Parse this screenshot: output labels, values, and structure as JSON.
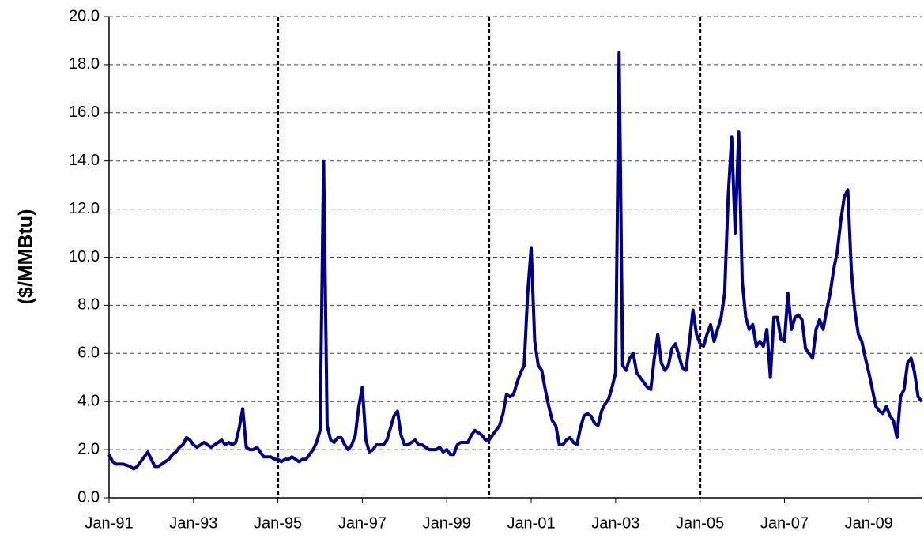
{
  "chart_data": {
    "type": "line",
    "y_label": "($/MMBtu)",
    "x": [
      "1991-01",
      "1991-02",
      "1991-03",
      "1991-04",
      "1991-05",
      "1991-06",
      "1991-07",
      "1991-08",
      "1991-09",
      "1991-10",
      "1991-11",
      "1991-12",
      "1992-01",
      "1992-02",
      "1992-03",
      "1992-04",
      "1992-05",
      "1992-06",
      "1992-07",
      "1992-08",
      "1992-09",
      "1992-10",
      "1992-11",
      "1992-12",
      "1993-01",
      "1993-02",
      "1993-03",
      "1993-04",
      "1993-05",
      "1993-06",
      "1993-07",
      "1993-08",
      "1993-09",
      "1993-10",
      "1993-11",
      "1993-12",
      "1994-01",
      "1994-02",
      "1994-03",
      "1994-04",
      "1994-05",
      "1994-06",
      "1994-07",
      "1994-08",
      "1994-09",
      "1994-10",
      "1994-11",
      "1994-12",
      "1995-01",
      "1995-02",
      "1995-03",
      "1995-04",
      "1995-05",
      "1995-06",
      "1995-07",
      "1995-08",
      "1995-09",
      "1995-10",
      "1995-11",
      "1995-12",
      "1996-01",
      "1996-02",
      "1996-03",
      "1996-04",
      "1996-05",
      "1996-06",
      "1996-07",
      "1996-08",
      "1996-09",
      "1996-10",
      "1996-11",
      "1996-12",
      "1997-01",
      "1997-02",
      "1997-03",
      "1997-04",
      "1997-05",
      "1997-06",
      "1997-07",
      "1997-08",
      "1997-09",
      "1997-10",
      "1997-11",
      "1997-12",
      "1998-01",
      "1998-02",
      "1998-03",
      "1998-04",
      "1998-05",
      "1998-06",
      "1998-07",
      "1998-08",
      "1998-09",
      "1998-10",
      "1998-11",
      "1998-12",
      "1999-01",
      "1999-02",
      "1999-03",
      "1999-04",
      "1999-05",
      "1999-06",
      "1999-07",
      "1999-08",
      "1999-09",
      "1999-10",
      "1999-11",
      "1999-12",
      "2000-01",
      "2000-02",
      "2000-03",
      "2000-04",
      "2000-05",
      "2000-06",
      "2000-07",
      "2000-08",
      "2000-09",
      "2000-10",
      "2000-11",
      "2000-12",
      "2001-01",
      "2001-02",
      "2001-03",
      "2001-04",
      "2001-05",
      "2001-06",
      "2001-07",
      "2001-08",
      "2001-09",
      "2001-10",
      "2001-11",
      "2001-12",
      "2002-01",
      "2002-02",
      "2002-03",
      "2002-04",
      "2002-05",
      "2002-06",
      "2002-07",
      "2002-08",
      "2002-09",
      "2002-10",
      "2002-11",
      "2002-12",
      "2003-01",
      "2003-02",
      "2003-03",
      "2003-04",
      "2003-05",
      "2003-06",
      "2003-07",
      "2003-08",
      "2003-09",
      "2003-10",
      "2003-11",
      "2003-12",
      "2004-01",
      "2004-02",
      "2004-03",
      "2004-04",
      "2004-05",
      "2004-06",
      "2004-07",
      "2004-08",
      "2004-09",
      "2004-10",
      "2004-11",
      "2004-12",
      "2005-01",
      "2005-02",
      "2005-03",
      "2005-04",
      "2005-05",
      "2005-06",
      "2005-07",
      "2005-08",
      "2005-09",
      "2005-10",
      "2005-11",
      "2005-12",
      "2006-01",
      "2006-02",
      "2006-03",
      "2006-04",
      "2006-05",
      "2006-06",
      "2006-07",
      "2006-08",
      "2006-09",
      "2006-10",
      "2006-11",
      "2006-12",
      "2007-01",
      "2007-02",
      "2007-03",
      "2007-04",
      "2007-05",
      "2007-06",
      "2007-07",
      "2007-08",
      "2007-09",
      "2007-10",
      "2007-11",
      "2007-12",
      "2008-01",
      "2008-02",
      "2008-03",
      "2008-04",
      "2008-05",
      "2008-06",
      "2008-07",
      "2008-08",
      "2008-09",
      "2008-10",
      "2008-11",
      "2008-12",
      "2009-01",
      "2009-02",
      "2009-03",
      "2009-04",
      "2009-05",
      "2009-06",
      "2009-07",
      "2009-08",
      "2009-09",
      "2009-10",
      "2009-11",
      "2009-12",
      "2010-01",
      "2010-02",
      "2010-03",
      "2010-04"
    ],
    "series": [
      {
        "color": "#000080",
        "values": [
          1.8,
          1.5,
          1.4,
          1.4,
          1.4,
          1.35,
          1.3,
          1.2,
          1.3,
          1.5,
          1.7,
          1.9,
          1.6,
          1.3,
          1.3,
          1.4,
          1.5,
          1.6,
          1.8,
          1.9,
          2.1,
          2.2,
          2.5,
          2.4,
          2.2,
          2.1,
          2.2,
          2.3,
          2.2,
          2.1,
          2.2,
          2.3,
          2.4,
          2.2,
          2.3,
          2.2,
          2.3,
          2.9,
          3.7,
          2.1,
          2.0,
          2.0,
          2.1,
          1.9,
          1.7,
          1.7,
          1.7,
          1.6,
          1.6,
          1.5,
          1.6,
          1.6,
          1.7,
          1.6,
          1.5,
          1.6,
          1.6,
          1.8,
          2.0,
          2.3,
          2.8,
          14.0,
          3.0,
          2.4,
          2.3,
          2.5,
          2.5,
          2.2,
          2.0,
          2.2,
          2.6,
          3.8,
          4.6,
          2.4,
          1.9,
          2.0,
          2.2,
          2.2,
          2.2,
          2.4,
          2.9,
          3.4,
          3.6,
          2.6,
          2.2,
          2.2,
          2.3,
          2.4,
          2.2,
          2.2,
          2.1,
          2.0,
          2.0,
          2.0,
          2.1,
          1.9,
          2.0,
          1.8,
          1.8,
          2.2,
          2.3,
          2.3,
          2.3,
          2.6,
          2.8,
          2.7,
          2.6,
          2.4,
          2.4,
          2.6,
          2.8,
          3.0,
          3.5,
          4.3,
          4.2,
          4.3,
          4.8,
          5.2,
          5.5,
          8.5,
          10.4,
          6.5,
          5.5,
          5.3,
          4.5,
          3.8,
          3.2,
          3.0,
          2.2,
          2.2,
          2.4,
          2.5,
          2.3,
          2.2,
          2.9,
          3.4,
          3.5,
          3.4,
          3.1,
          3.0,
          3.6,
          3.9,
          4.1,
          4.6,
          5.2,
          18.5,
          5.5,
          5.3,
          5.8,
          6.0,
          5.2,
          5.0,
          4.8,
          4.6,
          4.5,
          5.8,
          6.8,
          5.6,
          5.3,
          5.5,
          6.2,
          6.4,
          5.9,
          5.4,
          5.3,
          6.5,
          7.8,
          6.8,
          6.4,
          6.3,
          6.8,
          7.2,
          6.5,
          7.0,
          7.5,
          8.5,
          12.5,
          15.0,
          11.0,
          15.2,
          9.0,
          7.5,
          7.0,
          7.2,
          6.3,
          6.5,
          6.3,
          7.0,
          5.0,
          7.5,
          7.5,
          6.6,
          6.5,
          8.5,
          7.0,
          7.5,
          7.6,
          7.4,
          6.2,
          6.0,
          5.8,
          7.0,
          7.4,
          7.0,
          7.8,
          8.5,
          9.5,
          10.2,
          11.5,
          12.5,
          12.8,
          9.5,
          7.8,
          6.8,
          6.5,
          5.8,
          5.2,
          4.5,
          3.8,
          3.6,
          3.5,
          3.8,
          3.4,
          3.2,
          2.5,
          4.2,
          4.5,
          5.6,
          5.8,
          5.2,
          4.2,
          4.0
        ]
      }
    ],
    "xlim": [
      "1991-01",
      "2010-04"
    ],
    "xticks": [
      {
        "value": "1991-01",
        "label": "Jan-91"
      },
      {
        "value": "1993-01",
        "label": "Jan-93"
      },
      {
        "value": "1995-01",
        "label": "Jan-95"
      },
      {
        "value": "1997-01",
        "label": "Jan-97"
      },
      {
        "value": "1999-01",
        "label": "Jan-99"
      },
      {
        "value": "2001-01",
        "label": "Jan-01"
      },
      {
        "value": "2003-01",
        "label": "Jan-03"
      },
      {
        "value": "2005-01",
        "label": "Jan-05"
      },
      {
        "value": "2007-01",
        "label": "Jan-07"
      },
      {
        "value": "2009-01",
        "label": "Jan-09"
      }
    ],
    "ylim": [
      0,
      20
    ],
    "yticks": [
      {
        "value": 0,
        "label": "0.0"
      },
      {
        "value": 2,
        "label": "2.0"
      },
      {
        "value": 4,
        "label": "4.0"
      },
      {
        "value": 6,
        "label": "6.0"
      },
      {
        "value": 8,
        "label": "8.0"
      },
      {
        "value": 10,
        "label": "10.0"
      },
      {
        "value": 12,
        "label": "12.0"
      },
      {
        "value": 14,
        "label": "14.0"
      },
      {
        "value": 16,
        "label": "16.0"
      },
      {
        "value": 18,
        "label": "18.0"
      },
      {
        "value": 20,
        "label": "20.0"
      }
    ],
    "grid": true,
    "vlines": [
      "1995-01",
      "2000-01",
      "2005-01"
    ]
  }
}
